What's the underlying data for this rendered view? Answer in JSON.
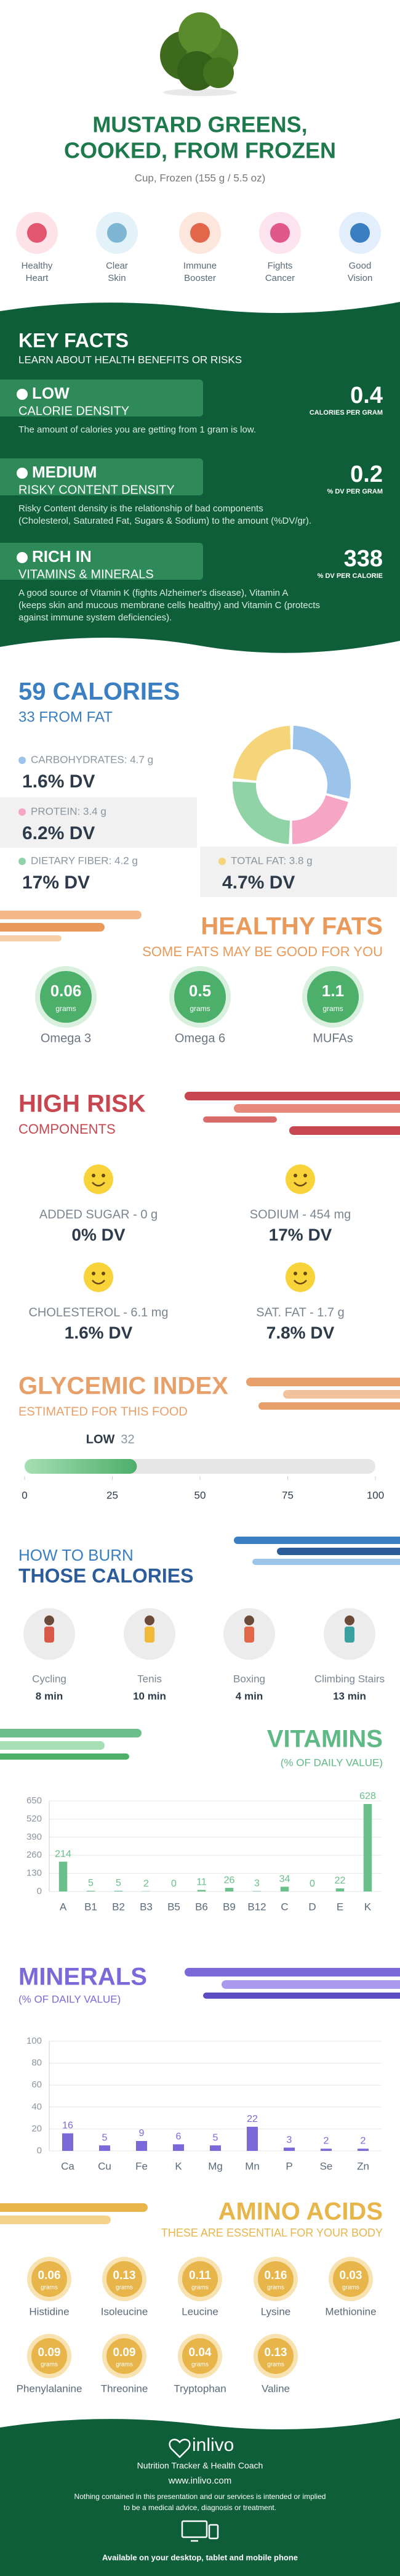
{
  "header": {
    "title_lines": [
      "MUSTARD GREENS,",
      "COOKED, FROM FROZEN"
    ],
    "serving": "Cup, Frozen (155 g / 5.5 oz)"
  },
  "benefits": [
    [
      "Healthy",
      "Heart"
    ],
    [
      "Clear",
      "Skin"
    ],
    [
      "Immune",
      "Booster"
    ],
    [
      "Fights",
      "Cancer"
    ],
    [
      "Good",
      "Vision"
    ]
  ],
  "key_facts": {
    "title": "KEY FACTS",
    "subtitle": "LEARN ABOUT HEALTH BENEFITS OR RISKS",
    "items": [
      {
        "level": "LOW",
        "label": "CALORIE DENSITY",
        "value": 0.4,
        "unit": "CALORIES PER GRAM",
        "description": [
          "The amount of calories you are getting from 1 gram is low."
        ]
      },
      {
        "level": "MEDIUM",
        "label": "RISKY CONTENT DENSITY",
        "value": 0.2,
        "unit": "% DV PER GRAM",
        "description": [
          "Risky Content density is the relationship of bad components",
          "(Cholesterol, Saturated Fat, Sugars & Sodium) to the amount (%DV/gr)."
        ]
      },
      {
        "level": "RICH  IN",
        "label": "VITAMINS & MINERALS",
        "value": 338,
        "unit": "% DV PER CALORIE",
        "description": [
          "A good source of Vitamin K (fights Alzheimer's disease), Vitamin A",
          "(keeps skin and mucous membrane cells healthy) and Vitamin C (protects",
          "against immune system deficiencies)."
        ]
      }
    ]
  },
  "calories": {
    "title": "59 CALORIES",
    "subtitle": "33 FROM FAT",
    "nutrients": [
      {
        "name": "CARBOHYDRATES: 4.7 g",
        "grams": 4.7,
        "dv": "1.6% DV",
        "color": "#9cc3ea"
      },
      {
        "name": "PROTEIN: 3.4 g",
        "grams": 3.4,
        "dv": "6.2% DV",
        "color": "#f4a6c4"
      },
      {
        "name": "DIETARY FIBER: 4.2 g",
        "grams": 4.2,
        "dv": "17% DV",
        "color": "#8fd3a6"
      },
      {
        "name": "TOTAL FAT: 3.8 g",
        "grams": 3.8,
        "dv": "4.7% DV",
        "color": "#f6d47a"
      }
    ]
  },
  "healthy_fats": {
    "title": "HEALTHY FATS",
    "subtitle": "SOME FATS MAY BE GOOD FOR YOU",
    "unit": "grams",
    "items": [
      {
        "name": "Omega 3",
        "value": 0.06
      },
      {
        "name": "Omega 6",
        "value": 0.5
      },
      {
        "name": "MUFAs",
        "value": 1.1
      }
    ]
  },
  "high_risk": {
    "title": "HIGH RISK",
    "subtitle": "COMPONENTS",
    "items": [
      {
        "name": "ADDED SUGAR - 0 g",
        "dv": "0% DV"
      },
      {
        "name": "SODIUM - 454 mg",
        "dv": "17% DV"
      },
      {
        "name": "CHOLESTEROL - 6.1 mg",
        "dv": "1.6% DV"
      },
      {
        "name": "SAT. FAT - 1.7 g",
        "dv": "7.8% DV"
      }
    ]
  },
  "glycemic": {
    "title": "GLYCEMIC INDEX",
    "subtitle": "ESTIMATED FOR THIS FOOD",
    "level": "LOW",
    "value": 32,
    "xlim": [
      0,
      100
    ],
    "xticks": [
      0,
      25,
      50,
      75,
      100
    ]
  },
  "burn": {
    "title_lines": [
      "HOW TO BURN",
      "THOSE CALORIES"
    ],
    "items": [
      {
        "activity": "Cycling",
        "time": "8 min"
      },
      {
        "activity": "Tenis",
        "time": "10 min"
      },
      {
        "activity": "Boxing",
        "time": "4 min"
      },
      {
        "activity": "Climbing Stairs",
        "time": "13 min"
      }
    ]
  },
  "chart_data": [
    {
      "type": "bar",
      "title": "VITAMINS",
      "subtitle": "(% OF DAILY VALUE)",
      "color": "#6abf8a",
      "categories": [
        "A",
        "B1",
        "B2",
        "B3",
        "B5",
        "B6",
        "B9",
        "B12",
        "C",
        "D",
        "E",
        "K"
      ],
      "values": [
        214,
        5,
        5,
        2,
        0,
        11,
        26,
        3,
        34,
        0,
        22,
        628
      ],
      "ylim": [
        0,
        650
      ],
      "yticks": [
        0,
        130,
        260,
        390,
        520,
        650
      ],
      "grid": true
    },
    {
      "type": "bar",
      "title": "MINERALS",
      "subtitle": "(% OF DAILY VALUE)",
      "color": "#7b68d9",
      "categories": [
        "Ca",
        "Cu",
        "Fe",
        "K",
        "Mg",
        "Mn",
        "P",
        "Se",
        "Zn"
      ],
      "values": [
        16,
        5,
        9,
        6,
        5,
        22,
        3,
        2,
        2
      ],
      "ylim": [
        0,
        100
      ],
      "yticks": [
        0,
        20,
        40,
        60,
        80,
        100
      ],
      "grid": true
    }
  ],
  "amino_acids": {
    "title": "AMINO ACIDS",
    "subtitle": "THESE ARE ESSENTIAL FOR YOUR BODY",
    "unit": "grams",
    "items": [
      {
        "name": "Histidine",
        "value": 0.06
      },
      {
        "name": "Isoleucine",
        "value": 0.13
      },
      {
        "name": "Leucine",
        "value": 0.11
      },
      {
        "name": "Lysine",
        "value": 0.16
      },
      {
        "name": "Methionine",
        "value": 0.03
      },
      {
        "name": "Phenylalanine",
        "value": 0.09
      },
      {
        "name": "Threonine",
        "value": 0.09
      },
      {
        "name": "Tryptophan",
        "value": 0.04
      },
      {
        "name": "Valine",
        "value": 0.13
      }
    ]
  },
  "footer": {
    "brand": "inlivo",
    "tagline": "Nutrition Tracker & Health Coach",
    "url": "www.inlivo.com",
    "disclaimer": [
      "Nothing contained in this presentation and our services is intended or implied",
      "to be a medical advice, diagnosis or treatment."
    ],
    "available": "Available on your desktop, tablet and mobile phone"
  }
}
